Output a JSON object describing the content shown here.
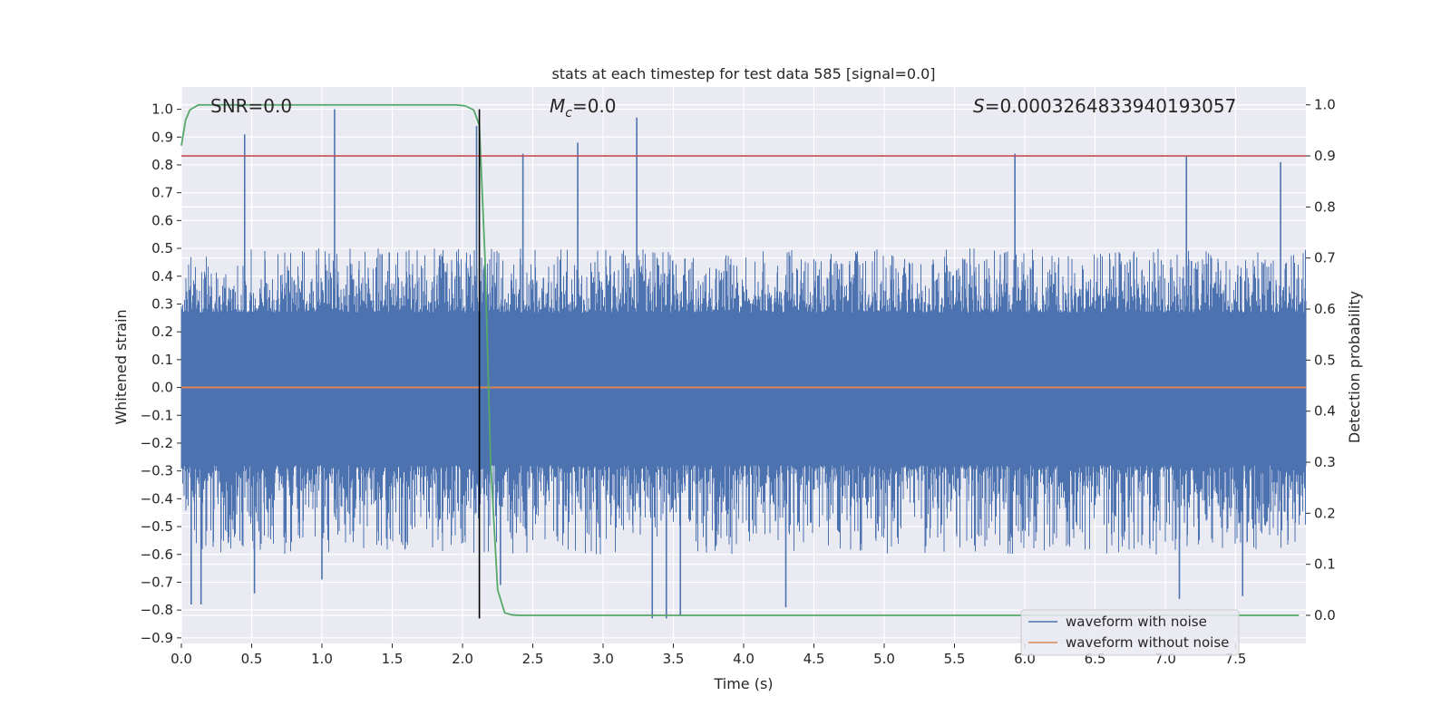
{
  "chart_data": {
    "type": "line",
    "title": "stats at each timestep for test data 585 [signal=0.0]",
    "xlabel": "Time (s)",
    "ylabel": "Whitened strain",
    "y2label": "Detection probability",
    "xlim": [
      0.0,
      8.0
    ],
    "ylim": [
      -0.92,
      1.08
    ],
    "y2lim": [
      -0.055,
      1.035
    ],
    "x_ticks": [
      0.0,
      0.5,
      1.0,
      1.5,
      2.0,
      2.5,
      3.0,
      3.5,
      4.0,
      4.5,
      5.0,
      5.5,
      6.0,
      6.5,
      7.0,
      7.5
    ],
    "x_tick_labels": [
      "0.0",
      "0.5",
      "1.0",
      "1.5",
      "2.0",
      "2.5",
      "3.0",
      "3.5",
      "4.0",
      "4.5",
      "5.0",
      "5.5",
      "6.0",
      "6.5",
      "7.0",
      "7.5"
    ],
    "y_ticks": [
      1.0,
      0.9,
      0.8,
      0.7,
      0.6,
      0.5,
      0.4,
      0.3,
      0.2,
      0.1,
      0.0,
      -0.1,
      -0.2,
      -0.3,
      -0.4,
      -0.5,
      -0.6,
      -0.7,
      -0.8,
      -0.9
    ],
    "y_tick_labels": [
      "1.0",
      "0.9",
      "0.8",
      "0.7",
      "0.6",
      "0.5",
      "0.4",
      "0.3",
      "0.2",
      "0.1",
      "0.0",
      "−0.1",
      "−0.2",
      "−0.3",
      "−0.4",
      "−0.5",
      "−0.6",
      "−0.7",
      "−0.8",
      "−0.9"
    ],
    "y2_ticks": [
      1.0,
      0.9,
      0.8,
      0.7,
      0.6,
      0.5,
      0.4,
      0.3,
      0.2,
      0.1,
      0.0
    ],
    "y2_tick_labels": [
      "1.0",
      "0.9",
      "0.8",
      "0.7",
      "0.6",
      "0.5",
      "0.4",
      "0.3",
      "0.2",
      "0.1",
      "0.0"
    ],
    "series": [
      {
        "name": "waveform with noise",
        "color": "#4c72b0",
        "kind": "noise",
        "duration": 8.0,
        "seed": 585,
        "core_min": -0.28,
        "core_max": 0.27,
        "envelope_max": 0.5,
        "envelope_min": -0.6,
        "spikes": [
          {
            "t": 0.45,
            "v": 0.91
          },
          {
            "t": 1.09,
            "v": 1.0
          },
          {
            "t": 2.1,
            "v": 0.94
          },
          {
            "t": 2.43,
            "v": 0.84
          },
          {
            "t": 2.82,
            "v": 0.88
          },
          {
            "t": 3.24,
            "v": 0.97
          },
          {
            "t": 5.93,
            "v": 0.84
          },
          {
            "t": 7.15,
            "v": 0.83
          },
          {
            "t": 7.82,
            "v": 0.81
          },
          {
            "t": 0.07,
            "v": -0.78
          },
          {
            "t": 0.14,
            "v": -0.78
          },
          {
            "t": 0.52,
            "v": -0.74
          },
          {
            "t": 1.0,
            "v": -0.69
          },
          {
            "t": 2.27,
            "v": -0.71
          },
          {
            "t": 3.35,
            "v": -0.83
          },
          {
            "t": 3.45,
            "v": -0.83
          },
          {
            "t": 3.55,
            "v": -0.82
          },
          {
            "t": 4.3,
            "v": -0.79
          },
          {
            "t": 7.1,
            "v": -0.76
          },
          {
            "t": 7.55,
            "v": -0.75
          }
        ]
      },
      {
        "name": "waveform without noise",
        "color": "#dd8452",
        "x": [
          0.0,
          8.0
        ],
        "values": [
          0.0,
          0.0
        ]
      },
      {
        "name": "detection probability",
        "color": "#55a868",
        "axis": "right",
        "x": [
          0.0,
          0.03,
          0.06,
          0.12,
          0.2,
          0.5,
          1.0,
          1.5,
          1.95,
          2.02,
          2.08,
          2.12,
          2.16,
          2.2,
          2.25,
          2.3,
          2.35,
          2.4,
          3.0,
          4.0,
          5.0,
          6.0,
          7.0,
          7.95
        ],
        "values": [
          0.92,
          0.97,
          0.99,
          1.0,
          1.0,
          1.0,
          1.0,
          1.0,
          1.0,
          0.998,
          0.99,
          0.96,
          0.7,
          0.3,
          0.05,
          0.005,
          0.001,
          0.0,
          0.0,
          0.0,
          0.0,
          0.0,
          0.0,
          0.0
        ]
      }
    ],
    "threshold": {
      "axis": "right",
      "value": 0.9,
      "color": "#c44e52"
    },
    "marker_line": {
      "x": 2.12,
      "y_from": 1.0,
      "y_to": -0.83,
      "color": "#000000"
    },
    "stats": {
      "snr": "SNR=0.0",
      "mc_symbol": "M",
      "mc_sub": "c",
      "mc_value": "=0.0",
      "s_symbol": "S",
      "s_value": "=0.0003264833940193057"
    },
    "legend": {
      "placement": "bottom-right",
      "entries": [
        {
          "label": "waveform with noise",
          "color": "#4c72b0"
        },
        {
          "label": "waveform without noise",
          "color": "#dd8452"
        }
      ]
    },
    "grid": true,
    "colors": {
      "plot_bg": "#eaeaf2",
      "grid": "#ffffff",
      "text": "#262626"
    }
  }
}
